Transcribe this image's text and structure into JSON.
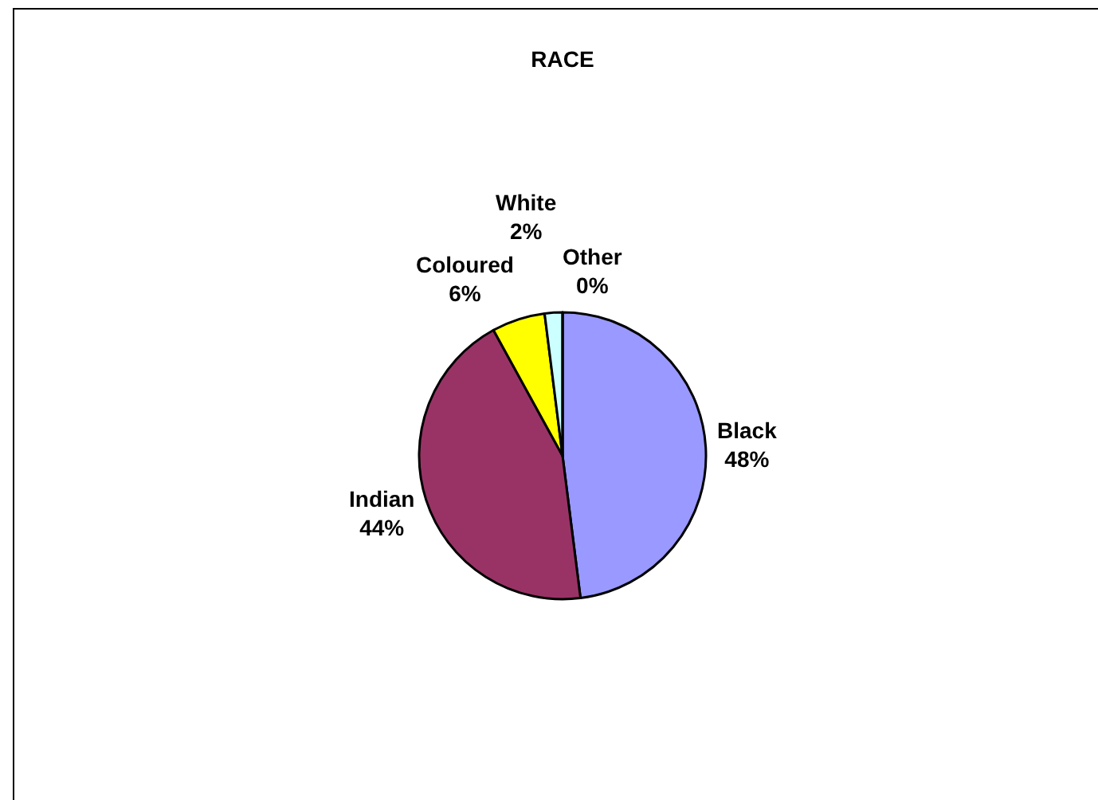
{
  "chart_data": {
    "type": "pie",
    "title": "RACE",
    "categories": [
      "Black",
      "Indian",
      "Coloured",
      "White",
      "Other"
    ],
    "values": [
      48,
      44,
      6,
      2,
      0
    ],
    "value_labels": [
      "48%",
      "44%",
      "6%",
      "2%",
      "0%"
    ],
    "colors": [
      "#9999ff",
      "#993366",
      "#ffff00",
      "#ccffff",
      null
    ]
  }
}
